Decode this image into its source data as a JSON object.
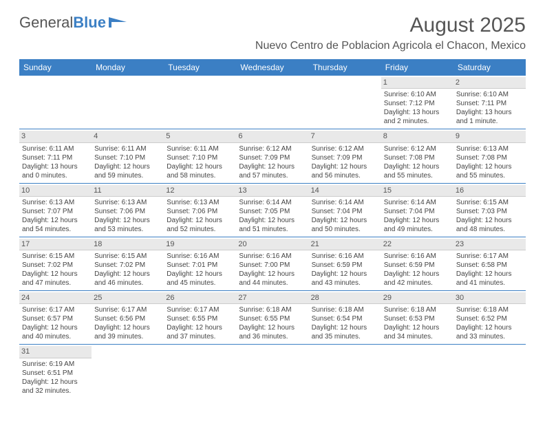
{
  "logo": {
    "text1": "General",
    "text2": "Blue"
  },
  "title": "August 2025",
  "location": "Nuevo Centro de Poblacion Agricola el Chacon, Mexico",
  "day_names": [
    "Sunday",
    "Monday",
    "Tuesday",
    "Wednesday",
    "Thursday",
    "Friday",
    "Saturday"
  ],
  "colors": {
    "header_bg": "#3b7fc4",
    "header_text": "#ffffff",
    "daynum_bg": "#e9e9e9",
    "text": "#444444"
  },
  "weeks": [
    [
      null,
      null,
      null,
      null,
      null,
      {
        "n": "1",
        "sr": "Sunrise: 6:10 AM",
        "ss": "Sunset: 7:12 PM",
        "d1": "Daylight: 13 hours",
        "d2": "and 2 minutes."
      },
      {
        "n": "2",
        "sr": "Sunrise: 6:10 AM",
        "ss": "Sunset: 7:11 PM",
        "d1": "Daylight: 13 hours",
        "d2": "and 1 minute."
      }
    ],
    [
      {
        "n": "3",
        "sr": "Sunrise: 6:11 AM",
        "ss": "Sunset: 7:11 PM",
        "d1": "Daylight: 13 hours",
        "d2": "and 0 minutes."
      },
      {
        "n": "4",
        "sr": "Sunrise: 6:11 AM",
        "ss": "Sunset: 7:10 PM",
        "d1": "Daylight: 12 hours",
        "d2": "and 59 minutes."
      },
      {
        "n": "5",
        "sr": "Sunrise: 6:11 AM",
        "ss": "Sunset: 7:10 PM",
        "d1": "Daylight: 12 hours",
        "d2": "and 58 minutes."
      },
      {
        "n": "6",
        "sr": "Sunrise: 6:12 AM",
        "ss": "Sunset: 7:09 PM",
        "d1": "Daylight: 12 hours",
        "d2": "and 57 minutes."
      },
      {
        "n": "7",
        "sr": "Sunrise: 6:12 AM",
        "ss": "Sunset: 7:09 PM",
        "d1": "Daylight: 12 hours",
        "d2": "and 56 minutes."
      },
      {
        "n": "8",
        "sr": "Sunrise: 6:12 AM",
        "ss": "Sunset: 7:08 PM",
        "d1": "Daylight: 12 hours",
        "d2": "and 55 minutes."
      },
      {
        "n": "9",
        "sr": "Sunrise: 6:13 AM",
        "ss": "Sunset: 7:08 PM",
        "d1": "Daylight: 12 hours",
        "d2": "and 55 minutes."
      }
    ],
    [
      {
        "n": "10",
        "sr": "Sunrise: 6:13 AM",
        "ss": "Sunset: 7:07 PM",
        "d1": "Daylight: 12 hours",
        "d2": "and 54 minutes."
      },
      {
        "n": "11",
        "sr": "Sunrise: 6:13 AM",
        "ss": "Sunset: 7:06 PM",
        "d1": "Daylight: 12 hours",
        "d2": "and 53 minutes."
      },
      {
        "n": "12",
        "sr": "Sunrise: 6:13 AM",
        "ss": "Sunset: 7:06 PM",
        "d1": "Daylight: 12 hours",
        "d2": "and 52 minutes."
      },
      {
        "n": "13",
        "sr": "Sunrise: 6:14 AM",
        "ss": "Sunset: 7:05 PM",
        "d1": "Daylight: 12 hours",
        "d2": "and 51 minutes."
      },
      {
        "n": "14",
        "sr": "Sunrise: 6:14 AM",
        "ss": "Sunset: 7:04 PM",
        "d1": "Daylight: 12 hours",
        "d2": "and 50 minutes."
      },
      {
        "n": "15",
        "sr": "Sunrise: 6:14 AM",
        "ss": "Sunset: 7:04 PM",
        "d1": "Daylight: 12 hours",
        "d2": "and 49 minutes."
      },
      {
        "n": "16",
        "sr": "Sunrise: 6:15 AM",
        "ss": "Sunset: 7:03 PM",
        "d1": "Daylight: 12 hours",
        "d2": "and 48 minutes."
      }
    ],
    [
      {
        "n": "17",
        "sr": "Sunrise: 6:15 AM",
        "ss": "Sunset: 7:02 PM",
        "d1": "Daylight: 12 hours",
        "d2": "and 47 minutes."
      },
      {
        "n": "18",
        "sr": "Sunrise: 6:15 AM",
        "ss": "Sunset: 7:02 PM",
        "d1": "Daylight: 12 hours",
        "d2": "and 46 minutes."
      },
      {
        "n": "19",
        "sr": "Sunrise: 6:16 AM",
        "ss": "Sunset: 7:01 PM",
        "d1": "Daylight: 12 hours",
        "d2": "and 45 minutes."
      },
      {
        "n": "20",
        "sr": "Sunrise: 6:16 AM",
        "ss": "Sunset: 7:00 PM",
        "d1": "Daylight: 12 hours",
        "d2": "and 44 minutes."
      },
      {
        "n": "21",
        "sr": "Sunrise: 6:16 AM",
        "ss": "Sunset: 6:59 PM",
        "d1": "Daylight: 12 hours",
        "d2": "and 43 minutes."
      },
      {
        "n": "22",
        "sr": "Sunrise: 6:16 AM",
        "ss": "Sunset: 6:59 PM",
        "d1": "Daylight: 12 hours",
        "d2": "and 42 minutes."
      },
      {
        "n": "23",
        "sr": "Sunrise: 6:17 AM",
        "ss": "Sunset: 6:58 PM",
        "d1": "Daylight: 12 hours",
        "d2": "and 41 minutes."
      }
    ],
    [
      {
        "n": "24",
        "sr": "Sunrise: 6:17 AM",
        "ss": "Sunset: 6:57 PM",
        "d1": "Daylight: 12 hours",
        "d2": "and 40 minutes."
      },
      {
        "n": "25",
        "sr": "Sunrise: 6:17 AM",
        "ss": "Sunset: 6:56 PM",
        "d1": "Daylight: 12 hours",
        "d2": "and 39 minutes."
      },
      {
        "n": "26",
        "sr": "Sunrise: 6:17 AM",
        "ss": "Sunset: 6:55 PM",
        "d1": "Daylight: 12 hours",
        "d2": "and 37 minutes."
      },
      {
        "n": "27",
        "sr": "Sunrise: 6:18 AM",
        "ss": "Sunset: 6:55 PM",
        "d1": "Daylight: 12 hours",
        "d2": "and 36 minutes."
      },
      {
        "n": "28",
        "sr": "Sunrise: 6:18 AM",
        "ss": "Sunset: 6:54 PM",
        "d1": "Daylight: 12 hours",
        "d2": "and 35 minutes."
      },
      {
        "n": "29",
        "sr": "Sunrise: 6:18 AM",
        "ss": "Sunset: 6:53 PM",
        "d1": "Daylight: 12 hours",
        "d2": "and 34 minutes."
      },
      {
        "n": "30",
        "sr": "Sunrise: 6:18 AM",
        "ss": "Sunset: 6:52 PM",
        "d1": "Daylight: 12 hours",
        "d2": "and 33 minutes."
      }
    ],
    [
      {
        "n": "31",
        "sr": "Sunrise: 6:19 AM",
        "ss": "Sunset: 6:51 PM",
        "d1": "Daylight: 12 hours",
        "d2": "and 32 minutes."
      },
      null,
      null,
      null,
      null,
      null,
      null
    ]
  ]
}
